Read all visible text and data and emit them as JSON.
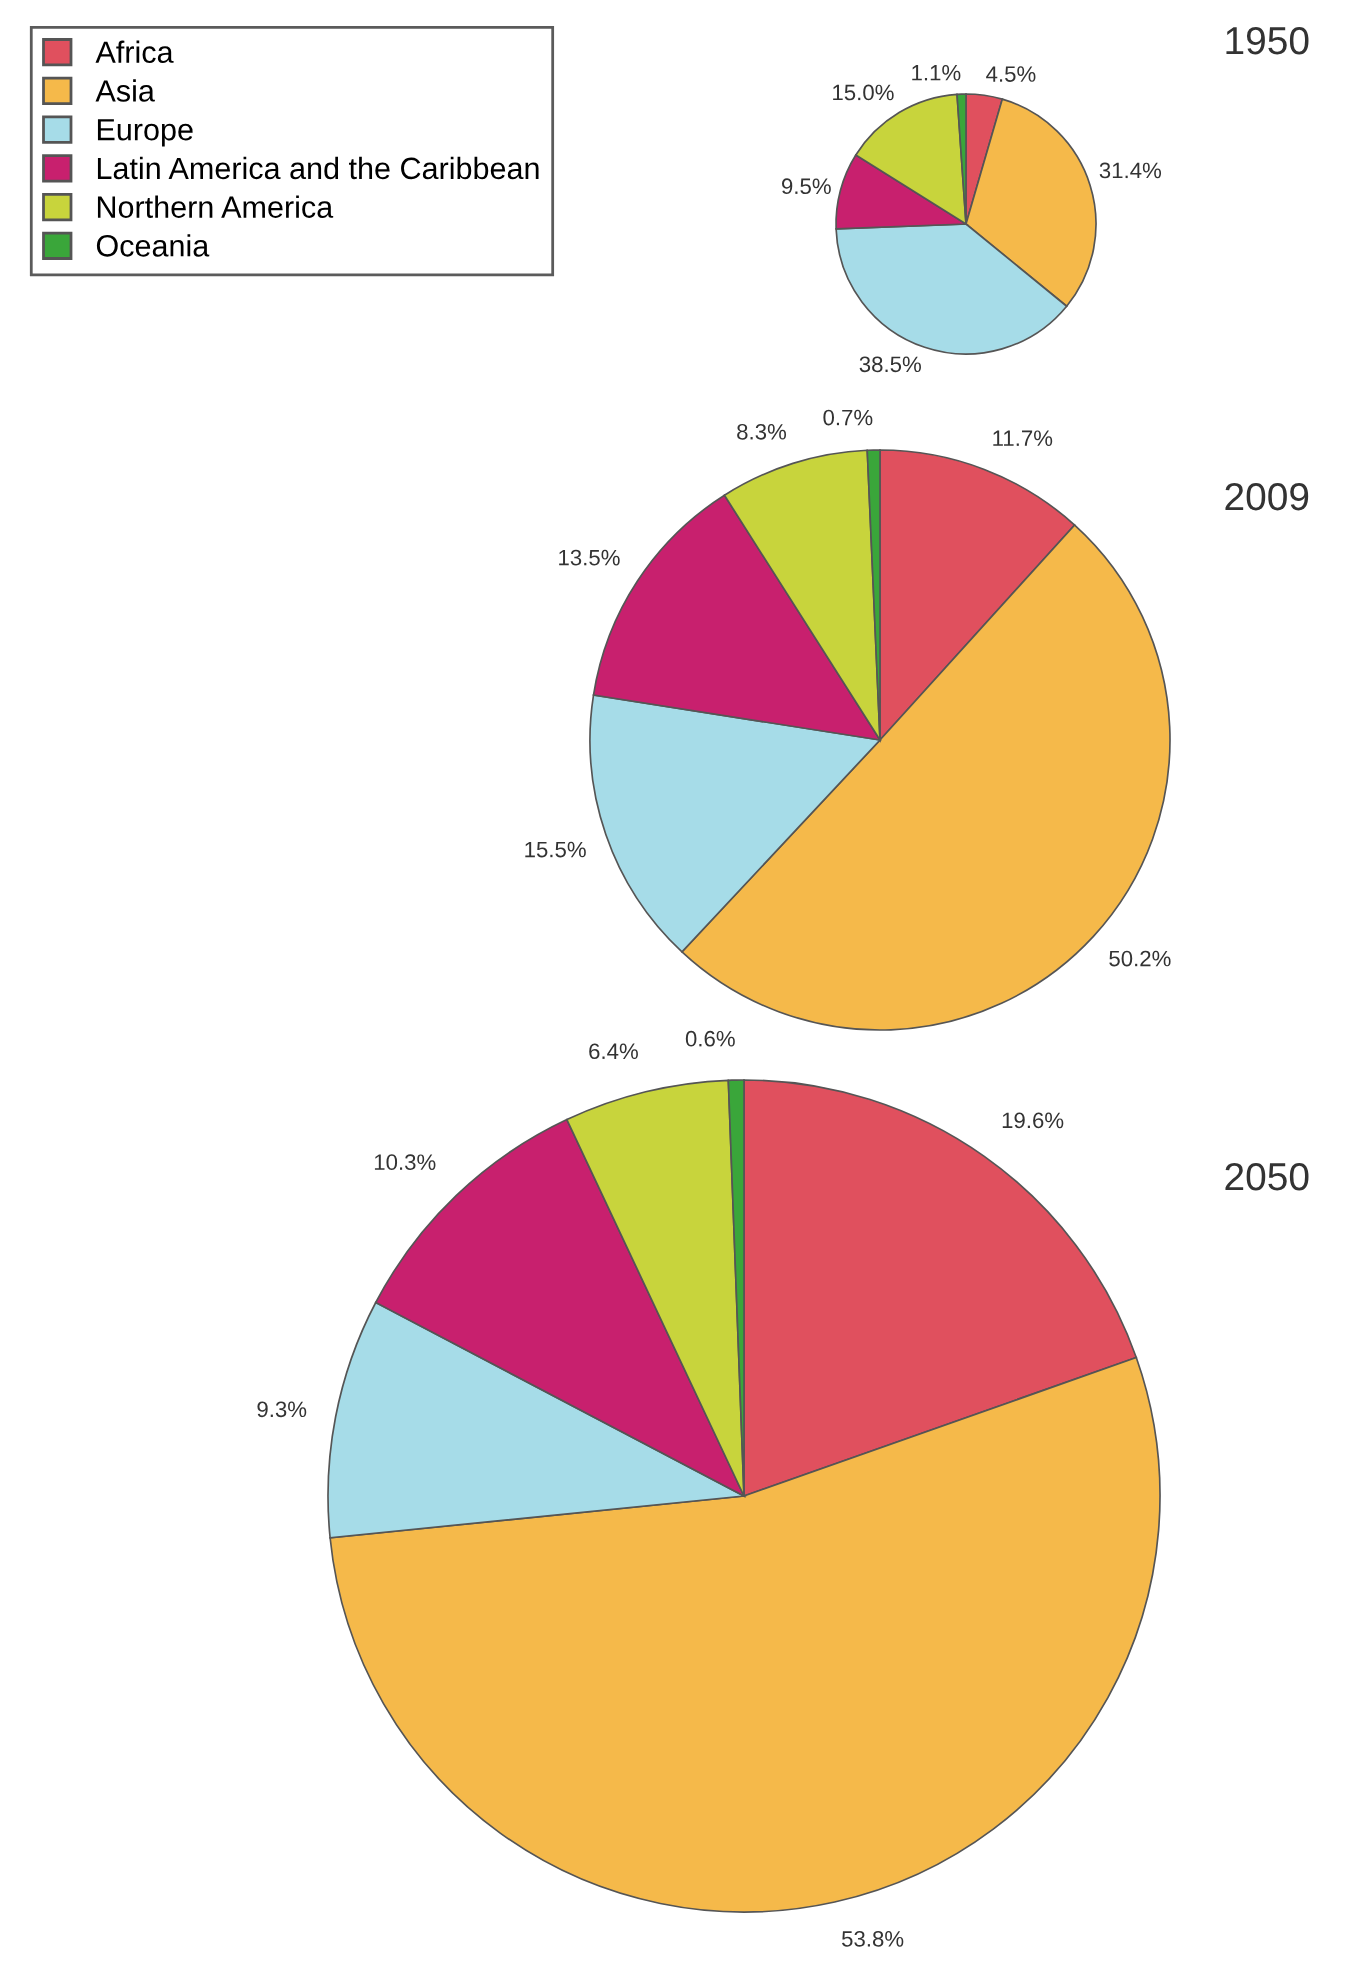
{
  "chart_data": [
    {
      "type": "pie",
      "title": "1950",
      "categories": [
        "Africa",
        "Asia",
        "Europe",
        "Latin America and the Caribbean",
        "Northern America",
        "Oceania"
      ],
      "values": [
        4.5,
        31.4,
        38.5,
        9.5,
        15.0,
        1.1
      ],
      "value_labels": [
        "4.5%",
        "31.4%",
        "38.5%",
        "9.5%",
        "15.0%",
        "1.1%"
      ],
      "colors": [
        "#e0505e",
        "#f5b94a",
        "#a6dce8",
        "#c8206e",
        "#c8d43c",
        "#3aa63a"
      ],
      "legend": "top left"
    },
    {
      "type": "pie",
      "title": "2009",
      "values": [
        11.7,
        50.2,
        15.5,
        13.5,
        8.3,
        0.7
      ],
      "value_labels": [
        "11.7%",
        "50.2%",
        "15.5%",
        "13.5%",
        "8.3%",
        "0.7%"
      ],
      "colors": [
        "#e0505e",
        "#f5b94a",
        "#a6dce8",
        "#c8206e",
        "#c8d43c",
        "#3aa63a"
      ]
    },
    {
      "type": "pie",
      "title": "2050",
      "values": [
        19.6,
        53.8,
        9.3,
        10.3,
        6.4,
        0.6
      ],
      "value_labels": [
        "19.6%",
        "53.8%",
        "9.3%",
        "10.3%",
        "6.4%",
        "0.6%"
      ],
      "colors": [
        "#e0505e",
        "#f5b94a",
        "#a6dce8",
        "#c8206e",
        "#c8d43c",
        "#3aa63a"
      ]
    }
  ]
}
